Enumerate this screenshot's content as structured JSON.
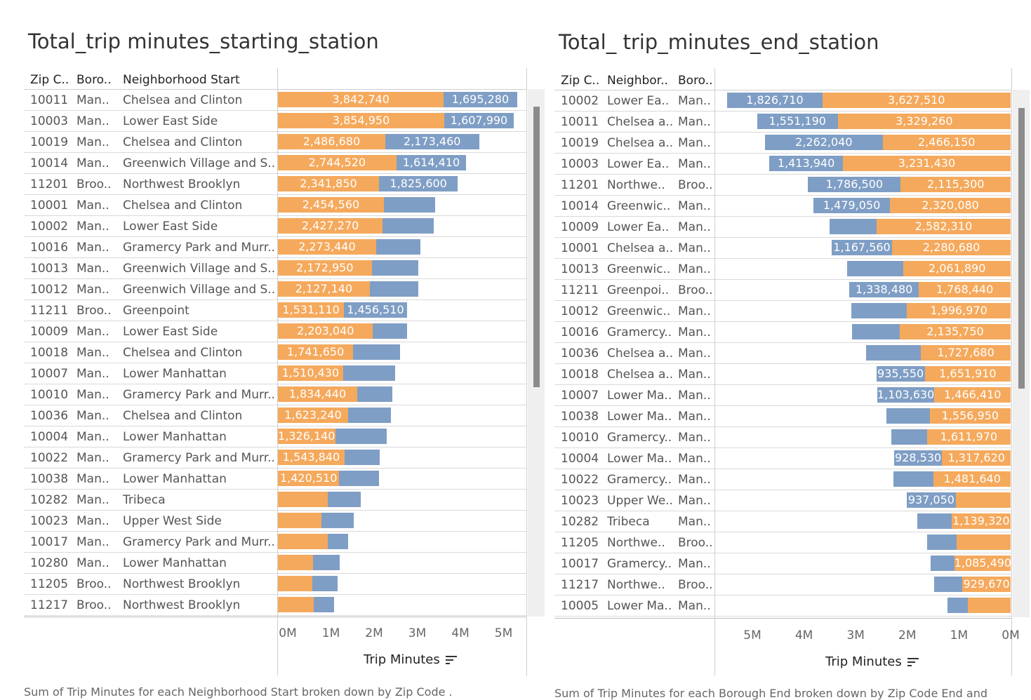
{
  "colors": {
    "orange": "#f5a95c",
    "blue": "#7f9ec5"
  },
  "left": {
    "title": "Total_trip minutes_starting_station",
    "headers": {
      "zip": "Zip C..",
      "boro": "Boro..",
      "neighborhood": "Neighborhood Start"
    },
    "axis_ticks": [
      "0M",
      "1M",
      "2M",
      "3M",
      "4M",
      "5M"
    ],
    "axis_title": "Trip Minutes",
    "caption": "Sum of Trip Minutes for each Neighborhood Start broken down by Zip Code ."
  },
  "right": {
    "title": "Total_ trip_minutes_end_station",
    "headers": {
      "zip": "Zip C..",
      "neighborhood": "Neighbor..",
      "boro": "Boro.."
    },
    "axis_ticks": [
      "5M",
      "4M",
      "3M",
      "2M",
      "1M",
      "0M"
    ],
    "axis_title": "Trip Minutes",
    "caption": "Sum of Trip Minutes for each Borough End broken down by Zip Code End and"
  },
  "chart_data": [
    {
      "type": "bar",
      "orientation": "horizontal-stacked",
      "title": "Total_trip minutes_starting_station",
      "xlabel": "Trip Minutes",
      "xlim": [
        0,
        5800000
      ],
      "rows": [
        {
          "zip": "10011",
          "boro": "Man..",
          "neighborhood": "Chelsea and Clinton",
          "orange": 3842740,
          "blue": 1695280,
          "orange_label": "3,842,740",
          "blue_label": "1,695,280"
        },
        {
          "zip": "10003",
          "boro": "Man..",
          "neighborhood": "Lower East Side",
          "orange": 3854950,
          "blue": 1607990,
          "orange_label": "3,854,950",
          "blue_label": "1,607,990"
        },
        {
          "zip": "10019",
          "boro": "Man..",
          "neighborhood": "Chelsea and Clinton",
          "orange": 2486680,
          "blue": 2173460,
          "orange_label": "2,486,680",
          "blue_label": "2,173,460"
        },
        {
          "zip": "10014",
          "boro": "Man..",
          "neighborhood": "Greenwich Village and S..",
          "orange": 2744520,
          "blue": 1614410,
          "orange_label": "2,744,520",
          "blue_label": "1,614,410"
        },
        {
          "zip": "11201",
          "boro": "Broo..",
          "neighborhood": "Northwest Brooklyn",
          "orange": 2341850,
          "blue": 1825600,
          "orange_label": "2,341,850",
          "blue_label": "1,825,600"
        },
        {
          "zip": "10001",
          "boro": "Man..",
          "neighborhood": "Chelsea and Clinton",
          "orange": 2454560,
          "blue": 1180000,
          "orange_label": "2,454,560",
          "blue_label": ""
        },
        {
          "zip": "10002",
          "boro": "Man..",
          "neighborhood": "Lower East Side",
          "orange": 2427270,
          "blue": 1180000,
          "orange_label": "2,427,270",
          "blue_label": ""
        },
        {
          "zip": "10016",
          "boro": "Man..",
          "neighborhood": "Gramercy Park and Murr..",
          "orange": 2273440,
          "blue": 1020000,
          "orange_label": "2,273,440",
          "blue_label": ""
        },
        {
          "zip": "10013",
          "boro": "Man..",
          "neighborhood": "Greenwich Village and S..",
          "orange": 2172950,
          "blue": 1080000,
          "orange_label": "2,172,950",
          "blue_label": ""
        },
        {
          "zip": "10012",
          "boro": "Man..",
          "neighborhood": "Greenwich Village and S..",
          "orange": 2127140,
          "blue": 1130000,
          "orange_label": "2,127,140",
          "blue_label": ""
        },
        {
          "zip": "11211",
          "boro": "Broo..",
          "neighborhood": "Greenpoint",
          "orange": 1531110,
          "blue": 1456510,
          "orange_label": "1,531,110",
          "blue_label": "1,456,510"
        },
        {
          "zip": "10009",
          "boro": "Man..",
          "neighborhood": "Lower East Side",
          "orange": 2203040,
          "blue": 790000,
          "orange_label": "2,203,040",
          "blue_label": ""
        },
        {
          "zip": "10018",
          "boro": "Man..",
          "neighborhood": "Chelsea and Clinton",
          "orange": 1741650,
          "blue": 1080000,
          "orange_label": "1,741,650",
          "blue_label": ""
        },
        {
          "zip": "10007",
          "boro": "Man..",
          "neighborhood": "Lower Manhattan",
          "orange": 1510430,
          "blue": 1210000,
          "orange_label": "1,510,430",
          "blue_label": ""
        },
        {
          "zip": "10010",
          "boro": "Man..",
          "neighborhood": "Gramercy Park and Murr..",
          "orange": 1834440,
          "blue": 820000,
          "orange_label": "1,834,440",
          "blue_label": ""
        },
        {
          "zip": "10036",
          "boro": "Man..",
          "neighborhood": "Chelsea and Clinton",
          "orange": 1623240,
          "blue": 1000000,
          "orange_label": "1,623,240",
          "blue_label": ""
        },
        {
          "zip": "10004",
          "boro": "Man..",
          "neighborhood": "Lower Manhattan",
          "orange": 1326140,
          "blue": 1190000,
          "orange_label": "1,326,140",
          "blue_label": ""
        },
        {
          "zip": "10022",
          "boro": "Man..",
          "neighborhood": "Gramercy Park and Murr..",
          "orange": 1543840,
          "blue": 820000,
          "orange_label": "1,543,840",
          "blue_label": ""
        },
        {
          "zip": "10038",
          "boro": "Man..",
          "neighborhood": "Lower Manhattan",
          "orange": 1420510,
          "blue": 920000,
          "orange_label": "1,420,510",
          "blue_label": ""
        },
        {
          "zip": "10282",
          "boro": "Man..",
          "neighborhood": "Tribeca",
          "orange": 1150000,
          "blue": 770000,
          "orange_label": "",
          "blue_label": ""
        },
        {
          "zip": "10023",
          "boro": "Man..",
          "neighborhood": "Upper West Side",
          "orange": 1010000,
          "blue": 740000,
          "orange_label": "",
          "blue_label": ""
        },
        {
          "zip": "10017",
          "boro": "Man..",
          "neighborhood": "Gramercy Park and Murr..",
          "orange": 1150000,
          "blue": 470000,
          "orange_label": "",
          "blue_label": ""
        },
        {
          "zip": "10280",
          "boro": "Man..",
          "neighborhood": "Lower Manhattan",
          "orange": 810000,
          "blue": 620000,
          "orange_label": "",
          "blue_label": ""
        },
        {
          "zip": "11205",
          "boro": "Broo..",
          "neighborhood": "Northwest Brooklyn",
          "orange": 790000,
          "blue": 590000,
          "orange_label": "",
          "blue_label": ""
        },
        {
          "zip": "11217",
          "boro": "Broo..",
          "neighborhood": "Northwest Brooklyn",
          "orange": 830000,
          "blue": 470000,
          "orange_label": "",
          "blue_label": ""
        }
      ]
    },
    {
      "type": "bar",
      "orientation": "horizontal-stacked-reversed",
      "title": "Total_ trip_minutes_end_station",
      "xlabel": "Trip Minutes",
      "xlim": [
        0,
        5500000
      ],
      "rows": [
        {
          "zip": "10002",
          "neighborhood": "Lower Ea..",
          "boro": "Man..",
          "orange": 3627510,
          "blue": 1826710,
          "orange_label": "3,627,510",
          "blue_label": "1,826,710"
        },
        {
          "zip": "10011",
          "neighborhood": "Chelsea a..",
          "boro": "Man..",
          "orange": 3329260,
          "blue": 1551190,
          "orange_label": "3,329,260",
          "blue_label": "1,551,190"
        },
        {
          "zip": "10019",
          "neighborhood": "Chelsea a..",
          "boro": "Man..",
          "orange": 2466150,
          "blue": 2262040,
          "orange_label": "2,466,150",
          "blue_label": "2,262,040"
        },
        {
          "zip": "10003",
          "neighborhood": "Lower Ea..",
          "boro": "Man..",
          "orange": 3231430,
          "blue": 1413940,
          "orange_label": "3,231,430",
          "blue_label": "1,413,940"
        },
        {
          "zip": "11201",
          "neighborhood": "Northwe..",
          "boro": "Broo..",
          "orange": 2115300,
          "blue": 1786500,
          "orange_label": "2,115,300",
          "blue_label": "1,786,500"
        },
        {
          "zip": "10014",
          "neighborhood": "Greenwic..",
          "boro": "Man..",
          "orange": 2320080,
          "blue": 1479050,
          "orange_label": "2,320,080",
          "blue_label": "1,479,050"
        },
        {
          "zip": "10009",
          "neighborhood": "Lower Ea..",
          "boro": "Man..",
          "orange": 2582310,
          "blue": 900000,
          "orange_label": "2,582,310",
          "blue_label": ""
        },
        {
          "zip": "10001",
          "neighborhood": "Chelsea a..",
          "boro": "Man..",
          "orange": 2280680,
          "blue": 1167560,
          "orange_label": "2,280,680",
          "blue_label": "1,167,560"
        },
        {
          "zip": "10013",
          "neighborhood": "Greenwic..",
          "boro": "Man..",
          "orange": 2061890,
          "blue": 1090000,
          "orange_label": "2,061,890",
          "blue_label": ""
        },
        {
          "zip": "11211",
          "neighborhood": "Greenpoi..",
          "boro": "Broo..",
          "orange": 1768440,
          "blue": 1338480,
          "orange_label": "1,768,440",
          "blue_label": "1,338,480"
        },
        {
          "zip": "10012",
          "neighborhood": "Greenwic..",
          "boro": "Man..",
          "orange": 1996970,
          "blue": 1070000,
          "orange_label": "1,996,970",
          "blue_label": ""
        },
        {
          "zip": "10016",
          "neighborhood": "Gramercy..",
          "boro": "Man..",
          "orange": 2135750,
          "blue": 920000,
          "orange_label": "2,135,750",
          "blue_label": ""
        },
        {
          "zip": "10036",
          "neighborhood": "Chelsea a..",
          "boro": "Man..",
          "orange": 1727680,
          "blue": 1060000,
          "orange_label": "1,727,680",
          "blue_label": ""
        },
        {
          "zip": "10018",
          "neighborhood": "Chelsea a..",
          "boro": "Man..",
          "orange": 1651910,
          "blue": 935550,
          "orange_label": "1,651,910",
          "blue_label": "935,550"
        },
        {
          "zip": "10007",
          "neighborhood": "Lower Ma..",
          "boro": "Man..",
          "orange": 1466410,
          "blue": 1103630,
          "orange_label": "1,466,410",
          "blue_label": "1,103,630"
        },
        {
          "zip": "10038",
          "neighborhood": "Lower Ma..",
          "boro": "Man..",
          "orange": 1556950,
          "blue": 830000,
          "orange_label": "1,556,950",
          "blue_label": ""
        },
        {
          "zip": "10010",
          "neighborhood": "Gramercy..",
          "boro": "Man..",
          "orange": 1611970,
          "blue": 690000,
          "orange_label": "1,611,970",
          "blue_label": ""
        },
        {
          "zip": "10004",
          "neighborhood": "Lower Ma..",
          "boro": "Man..",
          "orange": 1317620,
          "blue": 928530,
          "orange_label": "1,317,620",
          "blue_label": "928,530"
        },
        {
          "zip": "10022",
          "neighborhood": "Gramercy..",
          "boro": "Man..",
          "orange": 1481640,
          "blue": 770000,
          "orange_label": "1,481,640",
          "blue_label": ""
        },
        {
          "zip": "10023",
          "neighborhood": "Upper We..",
          "boro": "Man..",
          "orange": 1060000,
          "blue": 937050,
          "orange_label": "",
          "blue_label": "937,050"
        },
        {
          "zip": "10282",
          "neighborhood": "Tribeca",
          "boro": "Man..",
          "orange": 1139320,
          "blue": 660000,
          "orange_label": "1,139,320",
          "blue_label": ""
        },
        {
          "zip": "11205",
          "neighborhood": "Northwe..",
          "boro": "Broo..",
          "orange": 1040000,
          "blue": 570000,
          "orange_label": "",
          "blue_label": ""
        },
        {
          "zip": "10017",
          "neighborhood": "Gramercy..",
          "boro": "Man..",
          "orange": 1085490,
          "blue": 460000,
          "orange_label": "1,085,490",
          "blue_label": ""
        },
        {
          "zip": "11217",
          "neighborhood": "Northwe..",
          "boro": "Broo..",
          "orange": 929670,
          "blue": 540000,
          "orange_label": "929,670",
          "blue_label": ""
        },
        {
          "zip": "10005",
          "neighborhood": "Lower Ma..",
          "boro": "Man..",
          "orange": 830000,
          "blue": 390000,
          "orange_label": "",
          "blue_label": ""
        }
      ]
    }
  ]
}
